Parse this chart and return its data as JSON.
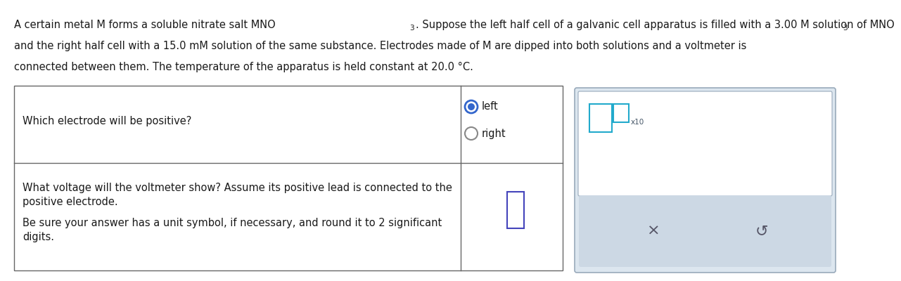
{
  "bg_color": "#ffffff",
  "text_color": "#1a1a1a",
  "header_line1a": "A certain metal M forms a soluble nitrate salt MNO",
  "header_line1b": ". Suppose the left half cell of a galvanic cell apparatus is filled with a 3.00 M solution of MNO",
  "header_line2": "and the right half cell with a 15.0 mM solution of the same substance. Electrodes made of M are dipped into both solutions and a voltmeter is",
  "header_line3": "connected between them. The temperature of the apparatus is held constant at 20.0 °C.",
  "q1_text": "Which electrode will be positive?",
  "q1_opt1": "left",
  "q1_opt2": "right",
  "q2_line1": "What voltage will the voltmeter show? Assume its positive lead is connected to the",
  "q2_line2": "positive electrode.",
  "q2_line3": "Be sure your answer has a unit symbol, if necessary, and round it to 2 significant",
  "q2_line4": "digits.",
  "table_color": "#666666",
  "radio_selected_color": "#3366cc",
  "radio_unselected_color": "#888888",
  "input_box_color": "#4444bb",
  "right_panel_bg": "#dce6ef",
  "right_panel_border": "#99aabb",
  "right_panel_top_bg": "#ffffff",
  "x10_box_color": "#22aacc",
  "x10_sup_box_color": "#22aacc",
  "btn_area_bg": "#ccd8e4",
  "btn_color": "#555566",
  "fs_main": 10.5,
  "fs_small": 8.0
}
